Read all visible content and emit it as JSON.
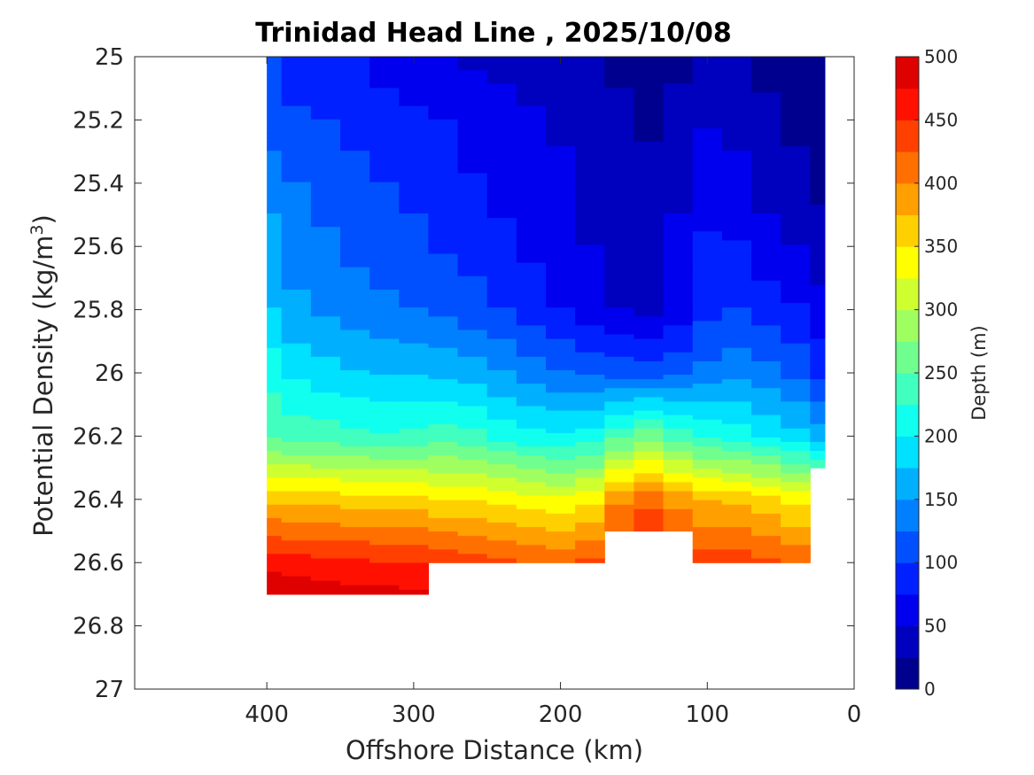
{
  "chart_data": {
    "type": "filled-contour",
    "title": "Trinidad Head Line , 2025/10/08",
    "xlabel": "Offshore Distance (km)",
    "ylabel_text": "Potential Density (kg/m",
    "ylabel_sup": "3",
    "ylabel_close": ")",
    "xlim": [
      490,
      0
    ],
    "ylim": [
      25,
      27
    ],
    "y_reversed": true,
    "x_ticks": [
      400,
      300,
      200,
      100,
      0
    ],
    "x_tick_labels": [
      "400",
      "300",
      "200",
      "100",
      "0"
    ],
    "y_ticks": [
      25,
      25.2,
      25.4,
      25.6,
      25.8,
      26,
      26.2,
      26.4,
      26.6,
      26.8,
      27
    ],
    "y_tick_labels": [
      "25",
      "25.2",
      "25.4",
      "25.6",
      "25.8",
      "26",
      "26.2",
      "26.4",
      "26.6",
      "26.8",
      "27"
    ],
    "colorbar": {
      "label": "Depth (m)",
      "range": [
        0,
        500
      ],
      "ticks": [
        0,
        50,
        100,
        150,
        200,
        250,
        300,
        350,
        400,
        450,
        500
      ],
      "tick_labels": [
        "0",
        "50",
        "100",
        "150",
        "200",
        "250",
        "300",
        "350",
        "400",
        "450",
        "500"
      ],
      "levels": [
        0,
        25,
        50,
        75,
        100,
        125,
        150,
        175,
        200,
        225,
        250,
        275,
        300,
        325,
        350,
        375,
        400,
        425,
        450,
        475,
        500
      ],
      "colormap": "jet",
      "colors": [
        "#00008f",
        "#0000bf",
        "#0000ef",
        "#0020ff",
        "#0050ff",
        "#0080ff",
        "#00b0ff",
        "#00e0ff",
        "#10ffef",
        "#40ffbf",
        "#70ff8f",
        "#a0ff60",
        "#d0ff30",
        "#ffff00",
        "#ffd000",
        "#ffa000",
        "#ff7000",
        "#ff4000",
        "#ff1000",
        "#df0000",
        "#af0000"
      ]
    },
    "isopycnal_depth_m": {
      "x_km": [
        400,
        380,
        360,
        340,
        320,
        300,
        280,
        260,
        240,
        220,
        200,
        180,
        160,
        140,
        120,
        100,
        80,
        60,
        40,
        20
      ],
      "sigma": [
        25.0,
        25.2,
        25.4,
        25.6,
        25.8,
        26.0,
        26.2,
        26.4,
        26.6,
        26.7
      ],
      "bottom_sigma": [
        26.7,
        26.7,
        26.7,
        26.7,
        26.7,
        26.7,
        26.6,
        26.6,
        26.6,
        26.6,
        26.6,
        26.6,
        26.5,
        26.5,
        26.5,
        26.6,
        26.6,
        26.6,
        26.6,
        26.3
      ],
      "depth": [
        [
          100,
          90,
          85,
          75,
          65,
          58,
          50,
          45,
          40,
          35,
          30,
          25,
          15,
          5,
          15,
          25,
          30,
          18,
          10,
          5
        ],
        [
          110,
          103,
          100,
          92,
          85,
          80,
          75,
          70,
          63,
          55,
          48,
          40,
          35,
          22,
          38,
          48,
          45,
          30,
          20,
          12
        ],
        [
          140,
          125,
          118,
          108,
          100,
          92,
          84,
          76,
          68,
          60,
          53,
          45,
          38,
          30,
          45,
          60,
          55,
          40,
          32,
          20
        ],
        [
          160,
          138,
          128,
          120,
          115,
          108,
          98,
          90,
          80,
          70,
          60,
          50,
          40,
          35,
          55,
          80,
          78,
          60,
          50,
          35
        ],
        [
          175,
          155,
          145,
          135,
          130,
          125,
          118,
          110,
          100,
          88,
          75,
          62,
          50,
          45,
          62,
          92,
          100,
          88,
          78,
          60
        ],
        [
          215,
          195,
          185,
          178,
          175,
          175,
          170,
          162,
          152,
          140,
          128,
          120,
          115,
          112,
          120,
          132,
          142,
          132,
          118,
          95
        ],
        [
          245,
          240,
          238,
          232,
          228,
          230,
          238,
          232,
          218,
          208,
          205,
          212,
          245,
          265,
          240,
          220,
          212,
          200,
          185,
          165
        ],
        [
          370,
          368,
          365,
          362,
          360,
          358,
          350,
          348,
          340,
          332,
          328,
          342,
          395,
          415,
          392,
          372,
          368,
          360,
          342,
          318
        ],
        [
          465,
          460,
          458,
          455,
          452,
          450,
          445,
          440,
          432,
          428,
          422,
          428,
          455,
          480,
          455,
          440,
          438,
          430,
          420,
          408
        ],
        [
          495,
          492,
          488,
          485,
          482,
          480,
          470,
          465,
          460,
          455,
          450,
          455,
          470,
          490,
          470,
          460,
          460,
          455,
          448,
          438
        ]
      ]
    }
  }
}
